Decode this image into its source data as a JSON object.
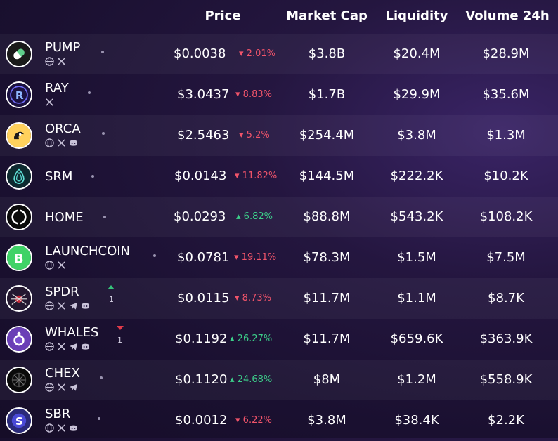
{
  "header": {
    "price": "Price",
    "market_cap": "Market Cap",
    "liquidity": "Liquidity",
    "volume": "Volume 24h"
  },
  "rows": [
    {
      "name": "PUMP",
      "price": "$0.0038",
      "change": "2.01%",
      "direction": "down",
      "market_cap": "$3.8B",
      "liquidity": "$20.4M",
      "volume": "$28.9M",
      "socials": [
        "globe-icon",
        "x-icon"
      ]
    },
    {
      "name": "RAY",
      "price": "$3.0437",
      "change": "8.83%",
      "direction": "down",
      "market_cap": "$1.7B",
      "liquidity": "$29.9M",
      "volume": "$35.6M",
      "socials": [
        "x-icon"
      ]
    },
    {
      "name": "ORCA",
      "price": "$2.5463",
      "change": "5.2%",
      "direction": "down",
      "market_cap": "$254.4M",
      "liquidity": "$3.8M",
      "volume": "$1.3M",
      "socials": [
        "globe-icon",
        "x-icon",
        "discord-icon"
      ]
    },
    {
      "name": "SRM",
      "price": "$0.0143",
      "change": "11.82%",
      "direction": "down",
      "market_cap": "$144.5M",
      "liquidity": "$222.2K",
      "volume": "$10.2K",
      "socials": []
    },
    {
      "name": "HOME",
      "price": "$0.0293",
      "change": "6.82%",
      "direction": "up",
      "market_cap": "$88.8M",
      "liquidity": "$543.2K",
      "volume": "$108.2K",
      "socials": []
    },
    {
      "name": "LAUNCHCOIN",
      "price": "$0.0781",
      "change": "19.11%",
      "direction": "down",
      "market_cap": "$78.3M",
      "liquidity": "$1.5M",
      "volume": "$7.5M",
      "socials": [
        "globe-icon",
        "x-icon"
      ]
    },
    {
      "name": "SPDR",
      "price": "$0.0115",
      "change": "8.73%",
      "direction": "down",
      "market_cap": "$11.7M",
      "liquidity": "$1.1M",
      "volume": "$8.7K",
      "socials": [
        "globe-icon",
        "x-icon",
        "telegram-icon",
        "discord-icon"
      ],
      "rank_trend": "up",
      "rank_change": "1"
    },
    {
      "name": "WHALES",
      "price": "$0.1192",
      "change": "26.27%",
      "direction": "up",
      "market_cap": "$11.7M",
      "liquidity": "$659.6K",
      "volume": "$363.9K",
      "socials": [
        "globe-icon",
        "x-icon",
        "telegram-icon",
        "discord-icon"
      ],
      "rank_trend": "down",
      "rank_change": "1"
    },
    {
      "name": "CHEX",
      "price": "$0.1120",
      "change": "24.68%",
      "direction": "up",
      "market_cap": "$8M",
      "liquidity": "$1.2M",
      "volume": "$558.9K",
      "socials": [
        "globe-icon",
        "x-icon",
        "telegram-icon"
      ]
    },
    {
      "name": "SBR",
      "price": "$0.0012",
      "change": "6.22%",
      "direction": "down",
      "market_cap": "$3.8M",
      "liquidity": "$38.4K",
      "volume": "$2.2K",
      "socials": [
        "globe-icon",
        "x-icon",
        "discord-icon"
      ]
    }
  ],
  "colors": {
    "negative": "#f0546a",
    "positive": "#3ccf8a"
  }
}
